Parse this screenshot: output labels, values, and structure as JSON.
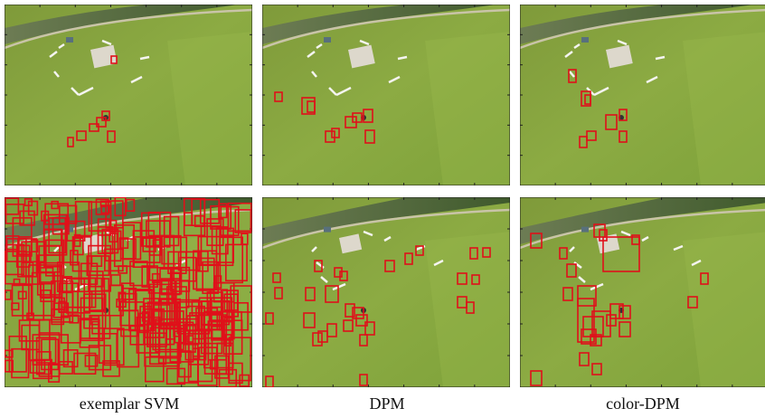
{
  "figure": {
    "captions": [
      "exemplar SVM",
      "DPM",
      "color-DPM"
    ]
  }
}
